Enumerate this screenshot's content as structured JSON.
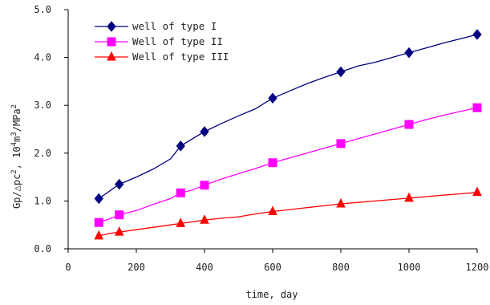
{
  "chart_data": {
    "type": "line",
    "xlabel": "time, day",
    "ylabel_parts": {
      "base": "Gp/△pc",
      "exp1": "2",
      "mid": ", 10",
      "exp2": "4",
      "unit": "m",
      "exp3": "3",
      "tail": "/MPa",
      "exp4": "2"
    },
    "xlim": [
      0,
      1200
    ],
    "ylim": [
      0,
      5
    ],
    "x_ticks": [
      0,
      200,
      400,
      600,
      800,
      1000,
      1200
    ],
    "y_ticks": [
      0,
      1,
      2,
      3,
      4,
      5
    ],
    "x_tick_labels": [
      "0",
      "200",
      "400",
      "600",
      "800",
      "1000",
      "1200"
    ],
    "y_tick_labels": [
      "0.0",
      "1.0",
      "2.0",
      "3.0",
      "4.0",
      "5.0"
    ],
    "grid": false,
    "legend_position": "top-left",
    "series": [
      {
        "name": "well of type I",
        "color": "#000080",
        "marker": "diamond",
        "line": [
          [
            90,
            1.05
          ],
          [
            120,
            1.2
          ],
          [
            150,
            1.35
          ],
          [
            200,
            1.5
          ],
          [
            250,
            1.67
          ],
          [
            300,
            1.88
          ],
          [
            330,
            2.15
          ],
          [
            360,
            2.28
          ],
          [
            400,
            2.45
          ],
          [
            450,
            2.62
          ],
          [
            500,
            2.78
          ],
          [
            550,
            2.93
          ],
          [
            600,
            3.15
          ],
          [
            650,
            3.3
          ],
          [
            700,
            3.45
          ],
          [
            750,
            3.58
          ],
          [
            800,
            3.7
          ],
          [
            850,
            3.82
          ],
          [
            900,
            3.9
          ],
          [
            950,
            4.0
          ],
          [
            1000,
            4.1
          ],
          [
            1050,
            4.2
          ],
          [
            1100,
            4.3
          ],
          [
            1150,
            4.39
          ],
          [
            1200,
            4.48
          ]
        ],
        "markers": [
          [
            90,
            1.05
          ],
          [
            150,
            1.35
          ],
          [
            330,
            2.15
          ],
          [
            400,
            2.45
          ],
          [
            600,
            3.15
          ],
          [
            800,
            3.7
          ],
          [
            1000,
            4.1
          ],
          [
            1200,
            4.48
          ]
        ]
      },
      {
        "name": "Well of type II",
        "color": "#ff00ff",
        "marker": "square",
        "line": [
          [
            90,
            0.55
          ],
          [
            120,
            0.62
          ],
          [
            150,
            0.71
          ],
          [
            200,
            0.8
          ],
          [
            250,
            0.93
          ],
          [
            300,
            1.05
          ],
          [
            330,
            1.17
          ],
          [
            360,
            1.22
          ],
          [
            400,
            1.33
          ],
          [
            450,
            1.46
          ],
          [
            500,
            1.57
          ],
          [
            550,
            1.68
          ],
          [
            600,
            1.8
          ],
          [
            650,
            1.9
          ],
          [
            700,
            2.0
          ],
          [
            750,
            2.1
          ],
          [
            800,
            2.2
          ],
          [
            850,
            2.3
          ],
          [
            900,
            2.4
          ],
          [
            950,
            2.5
          ],
          [
            1000,
            2.6
          ],
          [
            1050,
            2.7
          ],
          [
            1100,
            2.79
          ],
          [
            1150,
            2.87
          ],
          [
            1200,
            2.95
          ]
        ],
        "markers": [
          [
            90,
            0.55
          ],
          [
            150,
            0.71
          ],
          [
            330,
            1.17
          ],
          [
            400,
            1.33
          ],
          [
            600,
            1.8
          ],
          [
            800,
            2.2
          ],
          [
            1000,
            2.6
          ],
          [
            1200,
            2.95
          ]
        ]
      },
      {
        "name": "Well of type III",
        "color": "#ff0000",
        "marker": "triangle",
        "line": [
          [
            90,
            0.27
          ],
          [
            120,
            0.32
          ],
          [
            150,
            0.35
          ],
          [
            200,
            0.4
          ],
          [
            250,
            0.45
          ],
          [
            300,
            0.5
          ],
          [
            330,
            0.53
          ],
          [
            360,
            0.56
          ],
          [
            400,
            0.6
          ],
          [
            450,
            0.64
          ],
          [
            500,
            0.67
          ],
          [
            550,
            0.73
          ],
          [
            600,
            0.78
          ],
          [
            650,
            0.82
          ],
          [
            700,
            0.86
          ],
          [
            750,
            0.9
          ],
          [
            800,
            0.94
          ],
          [
            850,
            0.97
          ],
          [
            900,
            1.0
          ],
          [
            950,
            1.03
          ],
          [
            1000,
            1.06
          ],
          [
            1050,
            1.09
          ],
          [
            1100,
            1.12
          ],
          [
            1150,
            1.15
          ],
          [
            1200,
            1.18
          ]
        ],
        "markers": [
          [
            90,
            0.27
          ],
          [
            150,
            0.35
          ],
          [
            330,
            0.53
          ],
          [
            400,
            0.6
          ],
          [
            600,
            0.78
          ],
          [
            800,
            0.94
          ],
          [
            1000,
            1.06
          ],
          [
            1200,
            1.18
          ]
        ]
      }
    ]
  }
}
